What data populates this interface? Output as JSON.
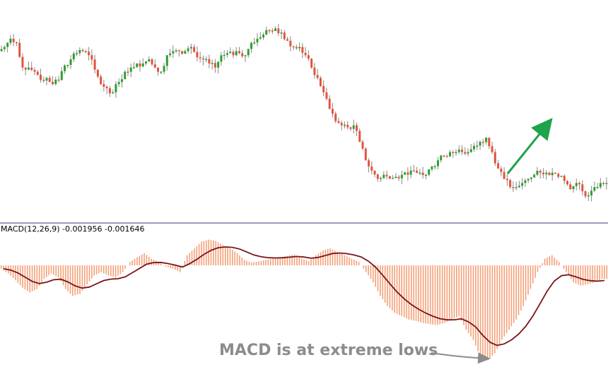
{
  "colors": {
    "bull": "#2ca02c",
    "bear": "#e8523a",
    "wick": "#888888",
    "hist": "#f4a078",
    "signal": "#7a1418",
    "divider": "#3a3a8a",
    "arrow_up": "#1fa34a",
    "arrow_note": "#8c8c8c"
  },
  "labels": {
    "macd_indicator": "MACD(12,26,9) -0.001956 -0.001646",
    "annotation": "MACD is at extreme lows"
  },
  "chart_data": [
    {
      "type": "candlestick",
      "title": "",
      "ylim": [
        0,
        100
      ],
      "trend_arrow": {
        "from": [
          118,
          38
        ],
        "to": [
          129,
          52
        ],
        "meaning": "price rising"
      },
      "close": [
        82,
        86,
        84,
        72,
        72,
        70,
        66,
        67,
        64,
        66,
        73,
        76,
        79,
        80,
        78,
        71,
        64,
        62,
        60,
        65,
        70,
        72,
        74,
        74,
        76,
        72,
        70,
        78,
        80,
        80,
        80,
        82,
        77,
        76,
        74,
        72,
        78,
        79,
        78,
        79,
        78,
        84,
        86,
        88,
        90,
        91,
        89,
        85,
        82,
        82,
        78,
        72,
        67,
        60,
        52,
        46,
        44,
        43,
        44,
        36,
        27,
        22,
        18,
        20,
        18,
        19,
        20,
        20,
        22,
        21,
        20,
        24,
        27,
        29,
        31,
        31,
        31,
        31,
        34,
        36,
        38,
        31,
        23,
        18,
        14,
        14,
        16,
        18,
        20,
        21,
        21,
        21,
        19,
        17,
        13,
        16,
        12,
        10,
        14,
        16,
        16
      ]
    },
    {
      "type": "bar+line",
      "title": "MACD(12,26,9)",
      "ylim": [
        -100,
        40
      ],
      "histogram": [
        -5,
        -12,
        -22,
        -33,
        -40,
        -35,
        -20,
        -12,
        -18,
        -35,
        -45,
        -42,
        -28,
        -15,
        -10,
        -15,
        -18,
        -10,
        5,
        12,
        18,
        10,
        5,
        -2,
        -5,
        -10,
        15,
        25,
        35,
        38,
        36,
        30,
        25,
        18,
        8,
        4,
        6,
        8,
        10,
        12,
        14,
        16,
        10,
        6,
        15,
        22,
        25,
        20,
        15,
        10,
        5,
        -10,
        -25,
        -45,
        -60,
        -70,
        -75,
        -80,
        -82,
        -85,
        -87,
        -88,
        -85,
        -80,
        -75,
        -95,
        -110,
        -135,
        -140,
        -130,
        -110,
        -95,
        -80,
        -60,
        -35,
        -10,
        10,
        15,
        5,
        -10,
        -25,
        -30,
        -28,
        -25,
        -20
      ]
    }
  ]
}
